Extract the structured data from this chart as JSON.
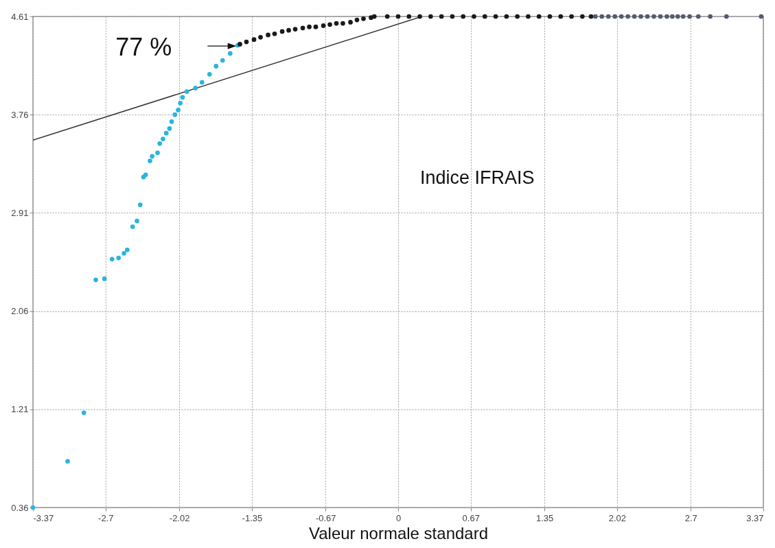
{
  "chart_data": {
    "type": "scatter",
    "xlabel": "Valeur normale standard",
    "xlim": [
      -3.37,
      3.37
    ],
    "ylim": [
      0.36,
      4.61
    ],
    "xticks": [
      -3.37,
      -2.7,
      -2.02,
      -1.35,
      -0.67,
      0,
      0.67,
      1.35,
      2.02,
      2.7,
      3.37
    ],
    "yticks": [
      0.36,
      1.21,
      2.06,
      2.91,
      3.76,
      4.61
    ],
    "grid": true,
    "marker": "circle",
    "series": [
      {
        "type": "line",
        "marker": "none",
        "color": "#333333",
        "x": [
          -3.37,
          0.22
        ],
        "values": [
          3.54,
          4.61
        ]
      },
      {
        "color": "#29b5dd",
        "x": [
          -3.37,
          -3.05,
          -2.9,
          -2.79,
          -2.71,
          -2.64,
          -2.58,
          -2.53,
          -2.5,
          -2.45,
          -2.41,
          -2.38,
          -2.35,
          -2.33,
          -2.29,
          -2.27,
          -2.22,
          -2.2,
          -2.17,
          -2.14,
          -2.11,
          -2.09,
          -2.06,
          -2.03,
          -2.01,
          -1.99,
          -1.95,
          -1.87,
          -1.81,
          -1.74,
          -1.68,
          -1.62,
          -1.55,
          -1.48
        ],
        "values": [
          0.36,
          0.76,
          1.18,
          2.33,
          2.34,
          2.51,
          2.52,
          2.56,
          2.59,
          2.79,
          2.84,
          2.98,
          3.22,
          3.24,
          3.36,
          3.4,
          3.43,
          3.51,
          3.55,
          3.6,
          3.64,
          3.7,
          3.76,
          3.8,
          3.86,
          3.91,
          3.96,
          3.99,
          4.04,
          4.11,
          4.18,
          4.23,
          4.29,
          4.36
        ]
      },
      {
        "color": "#1a1a1a",
        "x": [
          -1.46,
          -1.4,
          -1.33,
          -1.27,
          -1.2,
          -1.14,
          -1.07,
          -1.01,
          -0.95,
          -0.88,
          -0.82,
          -0.76,
          -0.69,
          -0.63,
          -0.57,
          -0.51,
          -0.44,
          -0.38,
          -0.32,
          -0.25,
          -0.22,
          -0.1,
          0,
          0.1,
          0.2,
          0.3,
          0.4,
          0.5,
          0.6,
          0.7,
          0.8,
          0.9,
          1,
          1.1,
          1.2,
          1.3,
          1.4,
          1.5,
          1.6,
          1.7,
          1.78
        ],
        "values": [
          4.37,
          4.39,
          4.41,
          4.43,
          4.45,
          4.46,
          4.48,
          4.49,
          4.5,
          4.51,
          4.52,
          4.52,
          4.53,
          4.54,
          4.55,
          4.55,
          4.56,
          4.58,
          4.59,
          4.6,
          4.61,
          4.61,
          4.61,
          4.61,
          4.61,
          4.61,
          4.61,
          4.61,
          4.61,
          4.61,
          4.61,
          4.61,
          4.61,
          4.61,
          4.61,
          4.61,
          4.61,
          4.61,
          4.61,
          4.61,
          4.61
        ]
      },
      {
        "color": "#555a70",
        "x": [
          1.82,
          1.88,
          1.94,
          2,
          2.06,
          2.12,
          2.18,
          2.24,
          2.3,
          2.36,
          2.42,
          2.48,
          2.53,
          2.58,
          2.63,
          2.69,
          2.77,
          2.88,
          3.03,
          3.35
        ],
        "values": [
          4.61,
          4.61,
          4.61,
          4.61,
          4.61,
          4.61,
          4.61,
          4.61,
          4.61,
          4.61,
          4.61,
          4.61,
          4.61,
          4.61,
          4.61,
          4.61,
          4.61,
          4.61,
          4.61,
          4.61
        ]
      }
    ],
    "annotations": [
      {
        "text": "77 %",
        "x": -1.48,
        "y": 4.36
      },
      "Indice IFRAIS"
    ]
  }
}
